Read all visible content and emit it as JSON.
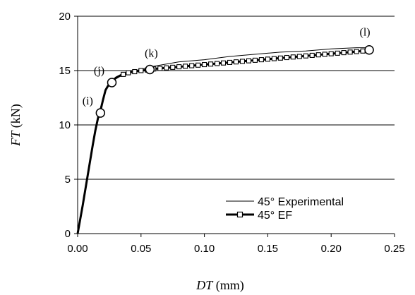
{
  "chart_data": {
    "type": "line",
    "xlabel_symbol": "DT",
    "xlabel_unit": " (mm)",
    "ylabel_symbol": "FT",
    "ylabel_unit": " (kN)",
    "xlim": [
      0,
      0.25
    ],
    "ylim": [
      0,
      20
    ],
    "x_ticks": [
      "0.00",
      "0.05",
      "0.10",
      "0.15",
      "0.20",
      "0.25"
    ],
    "y_ticks": [
      "0",
      "5",
      "10",
      "15",
      "20"
    ],
    "grid": "horizontal",
    "legend_position": "bottom-right",
    "series": [
      {
        "name": "45° Experimental",
        "style": "thin-line",
        "color": "#000000",
        "x": [
          0,
          0.003,
          0.006,
          0.009,
          0.012,
          0.015,
          0.018,
          0.021,
          0.024,
          0.027,
          0.03,
          0.035,
          0.04,
          0.05,
          0.06,
          0.07,
          0.08,
          0.09,
          0.1,
          0.12,
          0.14,
          0.16,
          0.18,
          0.2,
          0.22,
          0.23
        ],
        "y": [
          0,
          1.8,
          3.8,
          5.9,
          8.0,
          10.0,
          11.6,
          12.9,
          13.7,
          14.1,
          14.4,
          14.7,
          14.9,
          15.1,
          15.4,
          15.6,
          15.8,
          15.9,
          16.0,
          16.3,
          16.5,
          16.7,
          16.8,
          17.0,
          17.1,
          17.1
        ]
      },
      {
        "name": "45° EF",
        "style": "thick-line-square-markers",
        "color": "#000000",
        "x": [
          0,
          0.002,
          0.004,
          0.006,
          0.008,
          0.01,
          0.012,
          0.014,
          0.016,
          0.018,
          0.02,
          0.022,
          0.024,
          0.027,
          0.03,
          0.033,
          0.036,
          0.04,
          0.045,
          0.05,
          0.055,
          0.06,
          0.065,
          0.07,
          0.075,
          0.08,
          0.085,
          0.09,
          0.095,
          0.1,
          0.105,
          0.11,
          0.115,
          0.12,
          0.125,
          0.13,
          0.135,
          0.14,
          0.145,
          0.15,
          0.155,
          0.16,
          0.165,
          0.17,
          0.175,
          0.18,
          0.185,
          0.19,
          0.195,
          0.2,
          0.205,
          0.21,
          0.215,
          0.22,
          0.225,
          0.23
        ],
        "y": [
          0,
          1.3,
          2.6,
          4.0,
          5.4,
          6.8,
          8.2,
          9.5,
          10.6,
          11.3,
          12.3,
          13.2,
          13.6,
          14.0,
          14.3,
          14.5,
          14.65,
          14.8,
          14.9,
          15.0,
          15.05,
          15.15,
          15.2,
          15.25,
          15.3,
          15.35,
          15.4,
          15.45,
          15.5,
          15.55,
          15.6,
          15.65,
          15.7,
          15.75,
          15.8,
          15.85,
          15.9,
          15.95,
          16.0,
          16.05,
          16.1,
          16.15,
          16.2,
          16.25,
          16.3,
          16.35,
          16.4,
          16.45,
          16.5,
          16.55,
          16.6,
          16.65,
          16.7,
          16.75,
          16.8,
          16.9
        ]
      }
    ],
    "annotations": [
      {
        "label": "(i)",
        "x": 0.018,
        "y": 11.1
      },
      {
        "label": "(j)",
        "x": 0.027,
        "y": 13.9
      },
      {
        "label": "(k)",
        "x": 0.057,
        "y": 15.1
      },
      {
        "label": "(l)",
        "x": 0.23,
        "y": 16.9
      }
    ]
  }
}
